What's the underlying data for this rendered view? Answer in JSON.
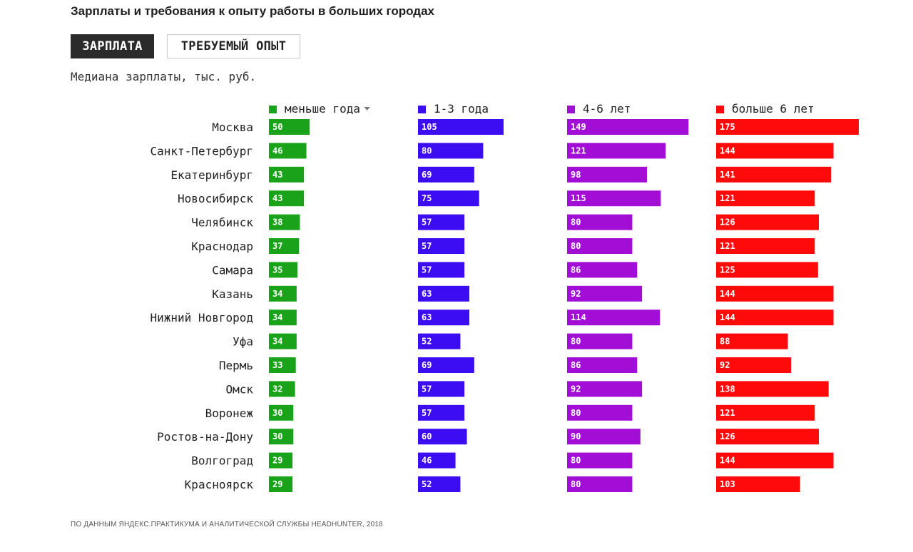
{
  "header": {
    "title": "Зарплаты и требования к опыту работы в больших городах",
    "subtitle": "Медиана зарплаты, тыс. руб."
  },
  "tabs": [
    {
      "label": "ЗАРПЛАТА",
      "active": true
    },
    {
      "label": "ТРЕБУЕМЫЙ ОПЫТ",
      "active": false
    }
  ],
  "footer": {
    "source": "ПО ДАННЫМ ЯНДЕКС.ПРАКТИКУМА И АНАЛИТИЧЕСКОЙ СЛУЖБЫ HEADHUNTER, 2018"
  },
  "chart_data": {
    "type": "bar",
    "orientation": "horizontal",
    "layout": "small-multiples",
    "sort_indicator": "меньше года",
    "categories": [
      "Москва",
      "Санкт-Петербург",
      "Екатеринбург",
      "Новосибирск",
      "Челябинск",
      "Краснодар",
      "Самара",
      "Казань",
      "Нижний Новгород",
      "Уфа",
      "Пермь",
      "Омск",
      "Воронеж",
      "Ростов-на-Дону",
      "Волгоград",
      "Красноярск"
    ],
    "series": [
      {
        "name": "меньше года",
        "color": "#1aa31a",
        "values": [
          50,
          46,
          43,
          43,
          38,
          37,
          35,
          34,
          34,
          34,
          33,
          32,
          30,
          30,
          29,
          29
        ]
      },
      {
        "name": "1-3 года",
        "color": "#3c0df2",
        "values": [
          105,
          80,
          69,
          75,
          57,
          57,
          57,
          63,
          63,
          52,
          69,
          57,
          57,
          60,
          46,
          52
        ]
      },
      {
        "name": "4-6 лет",
        "color": "#a30ed6",
        "values": [
          149,
          121,
          98,
          115,
          80,
          80,
          86,
          92,
          114,
          80,
          86,
          92,
          80,
          90,
          80,
          80
        ]
      },
      {
        "name": "больше 6 лет",
        "color": "#ff0a0a",
        "values": [
          175,
          144,
          141,
          121,
          126,
          121,
          125,
          144,
          144,
          88,
          92,
          138,
          121,
          126,
          144,
          103
        ]
      }
    ],
    "xlim": [
      0,
      175
    ],
    "grid": false,
    "legend": "top"
  }
}
